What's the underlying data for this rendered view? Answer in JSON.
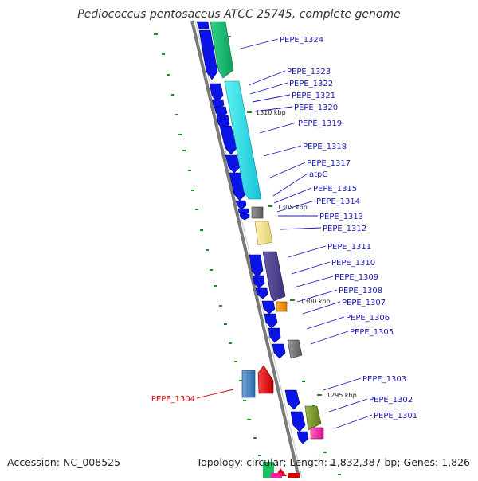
{
  "title": "Pediococcus pentosaceus ATCC 25745, complete genome",
  "footer": {
    "accession": "Accession: NC_008525",
    "summary": "Topology: circular; Length: 1,832,387 bp; Genes: 1,826"
  },
  "colors": {
    "gene_blue": "#0a14e6",
    "highlight_red": "#cc0000",
    "label_blue": "#1a1ab4"
  },
  "scale_marks": [
    "1310 kbp",
    "1305 kbp",
    "1300 kbp",
    "1295 kbp"
  ],
  "genes": [
    {
      "label": "PEPE_1324"
    },
    {
      "label": "PEPE_1323"
    },
    {
      "label": "PEPE_1322"
    },
    {
      "label": "PEPE_1321"
    },
    {
      "label": "PEPE_1320"
    },
    {
      "label": "PEPE_1319"
    },
    {
      "label": "PEPE_1318"
    },
    {
      "label": "PEPE_1317"
    },
    {
      "label": "atpC"
    },
    {
      "label": "PEPE_1315"
    },
    {
      "label": "PEPE_1314"
    },
    {
      "label": "PEPE_1313"
    },
    {
      "label": "PEPE_1312"
    },
    {
      "label": "PEPE_1311"
    },
    {
      "label": "PEPE_1310"
    },
    {
      "label": "PEPE_1309"
    },
    {
      "label": "PEPE_1308"
    },
    {
      "label": "PEPE_1307"
    },
    {
      "label": "PEPE_1306"
    },
    {
      "label": "PEPE_1305"
    },
    {
      "label": "PEPE_1304",
      "highlight": true
    },
    {
      "label": "PEPE_1303"
    },
    {
      "label": "PEPE_1302"
    },
    {
      "label": "PEPE_1301"
    }
  ]
}
